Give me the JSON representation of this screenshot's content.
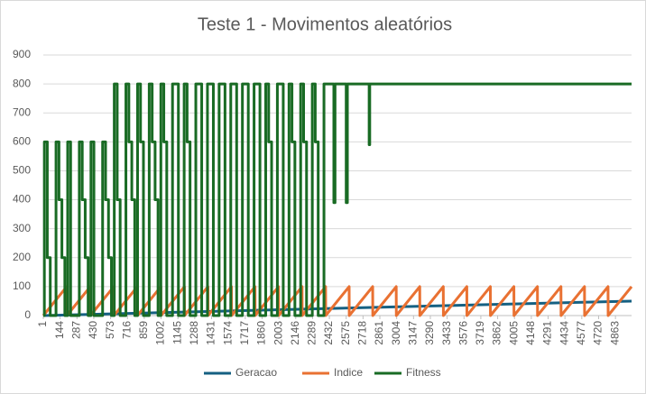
{
  "chart_data": {
    "type": "line",
    "title": "Teste 1 - Movimentos aleatórios",
    "xlim": [
      1,
      5000
    ],
    "xticks": [
      1,
      144,
      287,
      430,
      573,
      716,
      859,
      1002,
      1145,
      1288,
      1431,
      1574,
      1717,
      1860,
      2003,
      2146,
      2289,
      2432,
      2575,
      2718,
      2861,
      3004,
      3147,
      3290,
      3433,
      3576,
      3719,
      3862,
      4005,
      4148,
      4291,
      4434,
      4577,
      4720,
      4863
    ],
    "ylim": [
      0,
      900
    ],
    "yticks": [
      0,
      100,
      200,
      300,
      400,
      500,
      600,
      700,
      800,
      900
    ],
    "grid": true,
    "legend": "bottom",
    "series": [
      {
        "name": "Geracao",
        "color": "#156082",
        "x": [
          1,
          5000
        ],
        "values": [
          0,
          50
        ]
      },
      {
        "name": "Indice",
        "color": "#e97132",
        "x": [
          1,
          200,
          201,
          400,
          401,
          600,
          601,
          800,
          801,
          1000,
          1001,
          1200,
          1201,
          1400,
          1401,
          1600,
          1601,
          1800,
          1801,
          2000,
          2001,
          2200,
          2201,
          2400,
          2401,
          2600,
          2601,
          2800,
          2801,
          3000,
          3001,
          3200,
          3201,
          3400,
          3401,
          3600,
          3601,
          3800,
          3801,
          4000,
          4001,
          4200,
          4201,
          4400,
          4401,
          4600,
          4601,
          4800,
          4801,
          5000
        ],
        "values": [
          0,
          100,
          0,
          100,
          0,
          100,
          0,
          100,
          0,
          100,
          0,
          100,
          0,
          100,
          0,
          100,
          0,
          100,
          0,
          100,
          0,
          100,
          0,
          100,
          0,
          100,
          0,
          100,
          0,
          100,
          0,
          100,
          0,
          100,
          0,
          100,
          0,
          100,
          0,
          100,
          0,
          100,
          0,
          100,
          0,
          100,
          0,
          100,
          0,
          100
        ]
      },
      {
        "name": "Fitness",
        "color": "#196b24",
        "x": [
          1,
          10,
          10,
          35,
          35,
          60,
          60,
          109,
          109,
          134,
          134,
          159,
          159,
          184,
          184,
          208,
          208,
          233,
          233,
          307,
          307,
          332,
          332,
          357,
          357,
          382,
          382,
          406,
          406,
          431,
          431,
          505,
          505,
          530,
          530,
          555,
          555,
          580,
          580,
          604,
          604,
          629,
          629,
          654,
          654,
          703,
          703,
          728,
          728,
          753,
          753,
          778,
          778,
          802,
          802,
          827,
          827,
          852,
          852,
          901,
          901,
          926,
          926,
          951,
          951,
          976,
          976,
          1000,
          1000,
          1025,
          1025,
          1050,
          1050,
          1099,
          1099,
          1149,
          1149,
          1198,
          1198,
          1223,
          1223,
          1248,
          1248,
          1297,
          1297,
          1347,
          1347,
          1396,
          1396,
          1446,
          1446,
          1495,
          1495,
          1545,
          1545,
          1594,
          1594,
          1644,
          1644,
          1693,
          1693,
          1743,
          1743,
          1792,
          1792,
          1842,
          1842,
          1891,
          1891,
          1916,
          1916,
          1941,
          1941,
          1990,
          1990,
          2040,
          2040,
          2089,
          2089,
          2114,
          2114,
          2139,
          2139,
          2188,
          2188,
          2213,
          2213,
          2238,
          2238,
          2287,
          2287,
          2312,
          2312,
          2337,
          2337,
          2386,
          2386,
          2470,
          2470,
          2480,
          2480,
          2575,
          2575,
          2585,
          2585,
          2770,
          2770,
          2775,
          2775,
          5000
        ],
        "values": [
          0,
          0,
          600,
          600,
          200,
          200,
          0,
          0,
          600,
          600,
          400,
          400,
          200,
          200,
          0,
          0,
          600,
          600,
          0,
          0,
          600,
          600,
          400,
          400,
          200,
          200,
          0,
          0,
          600,
          600,
          0,
          0,
          600,
          600,
          400,
          400,
          200,
          200,
          0,
          0,
          800,
          800,
          400,
          400,
          0,
          0,
          800,
          800,
          600,
          600,
          400,
          400,
          0,
          0,
          800,
          800,
          600,
          600,
          0,
          0,
          800,
          800,
          600,
          600,
          400,
          400,
          0,
          0,
          800,
          800,
          600,
          600,
          0,
          0,
          800,
          800,
          0,
          0,
          800,
          800,
          600,
          600,
          0,
          0,
          800,
          800,
          0,
          0,
          800,
          800,
          0,
          0,
          800,
          800,
          0,
          0,
          800,
          800,
          0,
          0,
          800,
          800,
          0,
          0,
          800,
          800,
          0,
          0,
          800,
          800,
          600,
          600,
          0,
          0,
          800,
          800,
          0,
          0,
          800,
          800,
          600,
          600,
          0,
          0,
          800,
          800,
          600,
          600,
          0,
          0,
          800,
          800,
          600,
          600,
          0,
          0,
          800,
          800,
          390,
          390,
          800,
          800,
          390,
          390,
          800,
          800,
          590,
          590,
          800,
          800
        ]
      }
    ]
  }
}
